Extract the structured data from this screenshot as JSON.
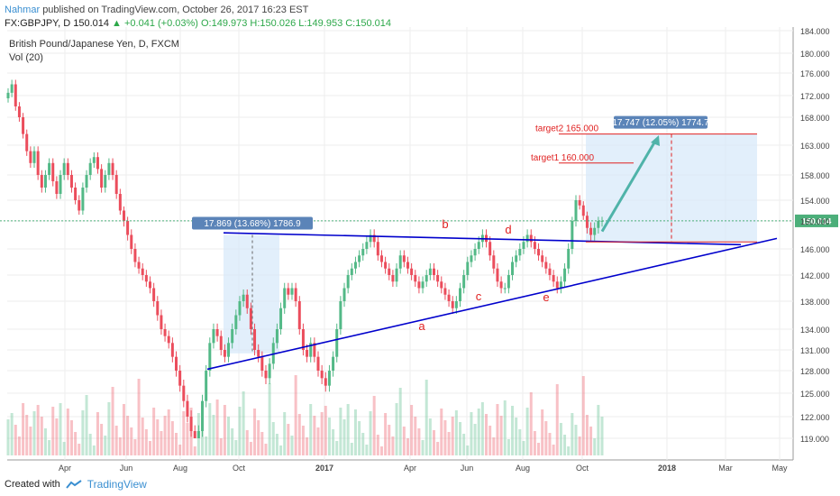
{
  "header": {
    "author": "Nahmar",
    "published": "published on TradingView.com, October 26, 2017 16:23 EST",
    "symbol": "FX:GBPJPY, D",
    "last": "150.014",
    "change": "▲ +0.041 (+0.03%)",
    "ohlc": "O:149.973 H:150.026 L:149.953 C:150.014"
  },
  "footer": {
    "created_with": "Created with",
    "brand": "TradingView"
  },
  "colors": {
    "up": "#53b987",
    "down": "#eb4d5c",
    "trend": "#0000cc",
    "annotation": "#e02020",
    "arrow": "#4fb3a9",
    "box": "#d6e8fa",
    "label_bg": "#5b84b8",
    "price_tag": "#4caf7a"
  },
  "chart_data": {
    "type": "candlestick",
    "title": "British Pound/Japanese Yen, D, FXCM",
    "subtitle": "Vol (20)",
    "y_ticks": [
      "119.000",
      "122.000",
      "125.000",
      "128.000",
      "131.000",
      "134.000",
      "138.000",
      "142.000",
      "146.000",
      "150.000",
      "154.000",
      "158.000",
      "163.000",
      "168.000",
      "172.000",
      "176.000",
      "180.000",
      "184.000"
    ],
    "x_ticks": [
      "Apr",
      "Jun",
      "Aug",
      "Oct",
      "2017",
      "Apr",
      "Jun",
      "Aug",
      "Oct",
      "2018",
      "Mar",
      "May"
    ],
    "last_price_tag": "150.014",
    "grid": true,
    "series_close": [
      172.5,
      174,
      170,
      168,
      165,
      162,
      160,
      162,
      158,
      156,
      158,
      160,
      157,
      155,
      158,
      160,
      158,
      156,
      154,
      152,
      156,
      158,
      160,
      161,
      159,
      156,
      158,
      160,
      158,
      155,
      152,
      150,
      148,
      146,
      144,
      143,
      142,
      141,
      140,
      138,
      136,
      134,
      133,
      132,
      130,
      128,
      126,
      124,
      122,
      120,
      118,
      120,
      124,
      128,
      132,
      134,
      133,
      131,
      130,
      132,
      134,
      136,
      138,
      139,
      137,
      134,
      131,
      130,
      128,
      127,
      129,
      132,
      134,
      137,
      140,
      139,
      140,
      138,
      134,
      131,
      130,
      132,
      130,
      128,
      127,
      126,
      128,
      130,
      134,
      138,
      140,
      142,
      143,
      144,
      145,
      146,
      147,
      148,
      147,
      145,
      144,
      143,
      142,
      141,
      143,
      145,
      144,
      143,
      142,
      141,
      140,
      141,
      142,
      143,
      142,
      141,
      140,
      139,
      138,
      137,
      138,
      140,
      142,
      144,
      145,
      146,
      147,
      148,
      147,
      145,
      143,
      141,
      140,
      140,
      142,
      144,
      145,
      146,
      147,
      148,
      147,
      146,
      145,
      144,
      143,
      142,
      141,
      140,
      141,
      143,
      146,
      150,
      154,
      153,
      151,
      149,
      148,
      149,
      150,
      150.014
    ],
    "annotations": {
      "measure1": "17.869 (13.68%) 1786.9",
      "measure2": "17.747 (12.05%) 1774.7",
      "target1": "target1 160.000",
      "target2": "target2 165.000",
      "points": [
        "a",
        "b",
        "c",
        "d",
        "e"
      ]
    }
  }
}
